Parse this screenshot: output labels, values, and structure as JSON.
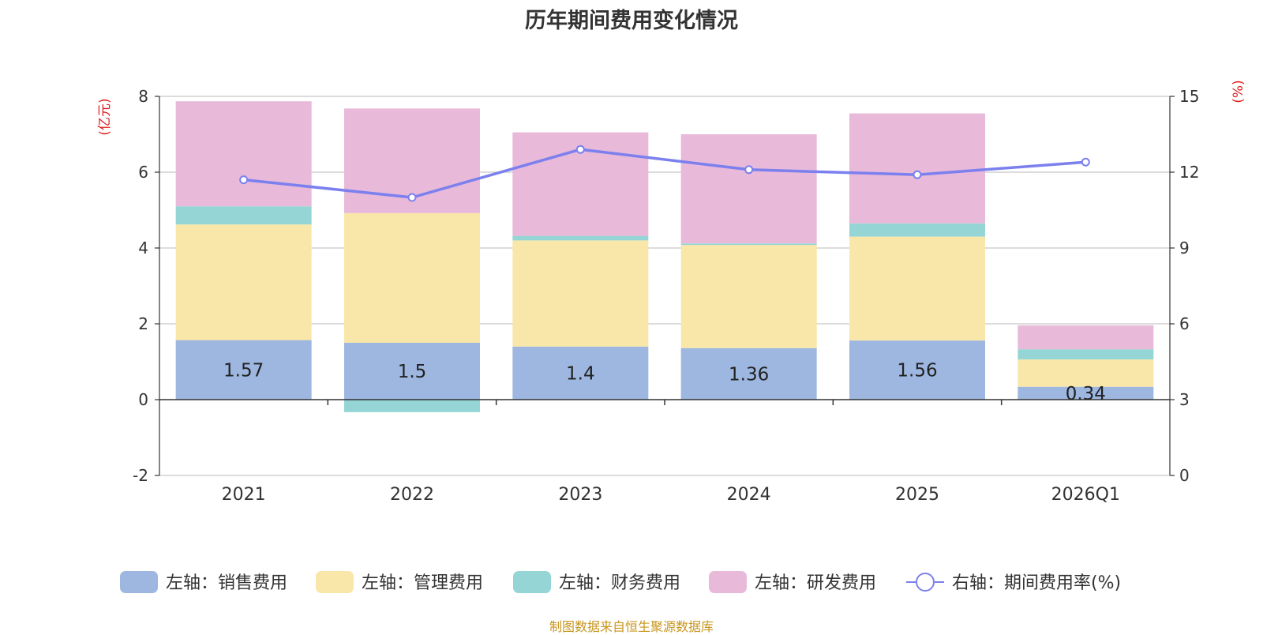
{
  "chart_data": {
    "type": "bar",
    "stacked": true,
    "title": "历年期间费用变化情况",
    "categories": [
      "2021",
      "2022",
      "2023",
      "2024",
      "2025",
      "2026Q1"
    ],
    "left_axis": {
      "label": "(亿元)",
      "ylim": [
        -2,
        8
      ],
      "ticks": [
        "-2",
        "0",
        "2",
        "4",
        "6",
        "8"
      ]
    },
    "right_axis": {
      "label": "(%)",
      "ylim": [
        0,
        15
      ],
      "ticks": [
        "0",
        "3",
        "6",
        "9",
        "12",
        "15"
      ]
    },
    "series": [
      {
        "name": "左轴：销售费用",
        "axis": "left",
        "color": "#9db7e0",
        "values": [
          1.57,
          1.5,
          1.4,
          1.36,
          1.56,
          0.34
        ],
        "labels": [
          "1.57",
          "1.5",
          "1.4",
          "1.36",
          "1.56",
          "0.34"
        ]
      },
      {
        "name": "左轴：管理费用",
        "axis": "left",
        "color": "#f8e7a8",
        "values": [
          3.05,
          3.42,
          2.8,
          2.72,
          2.74,
          0.72
        ]
      },
      {
        "name": "左轴：财务费用",
        "axis": "left",
        "color": "#96d5d5",
        "values": [
          0.48,
          -0.33,
          0.12,
          0.04,
          0.35,
          0.27
        ]
      },
      {
        "name": "左轴：研发费用",
        "axis": "left",
        "color": "#e8b9d9",
        "values": [
          2.77,
          2.76,
          2.73,
          2.88,
          2.9,
          0.63
        ]
      },
      {
        "name": "右轴：期间费用率(%)",
        "axis": "right",
        "type": "line",
        "color": "#7b80ee",
        "values": [
          11.7,
          11.0,
          12.9,
          12.1,
          11.9,
          12.4
        ]
      }
    ],
    "legend_position": "bottom",
    "grid": true
  },
  "source_note": "制图数据来自恒生聚源数据库"
}
